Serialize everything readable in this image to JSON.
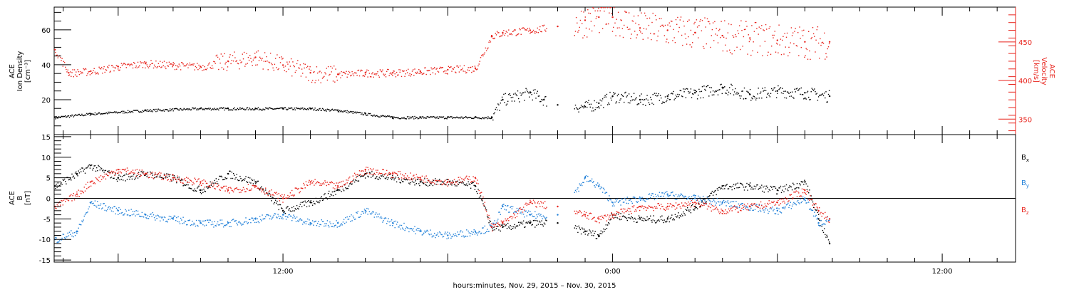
{
  "xaxis_title": "hours:minutes, Nov. 29, 2015 – Nov. 30, 2015",
  "colors": {
    "black": "#000000",
    "red": "#e8231c",
    "blue": "#1f7fd8"
  },
  "chart_data": [
    {
      "type": "scatter",
      "panel": "ion-density-velocity",
      "ylabel_left": [
        "ACE",
        "Ion Density",
        "[cm⁻³]"
      ],
      "ylabel_right": [
        "ACE",
        "Velocity",
        "[km/s]"
      ],
      "x_range_hours": [
        3.67,
        38.67
      ],
      "xtick_labels": [
        "12:00",
        "0:00",
        "12:00"
      ],
      "ylim_left": [
        0,
        73
      ],
      "yticks_left": [
        20,
        40,
        60
      ],
      "ylim_right": [
        330,
        495
      ],
      "yticks_right": [
        350,
        400,
        450
      ],
      "series": [
        {
          "axis": "left",
          "color": "black",
          "x": [
            3.7,
            5,
            7,
            9,
            10,
            11,
            12,
            13,
            14,
            15,
            16,
            17,
            18,
            19,
            19.6,
            20,
            21,
            21.5,
            22,
            23,
            23.5,
            24,
            25,
            26,
            27,
            28,
            29,
            30,
            31,
            31.9
          ],
          "y": [
            10,
            12,
            14,
            15,
            15,
            15,
            15,
            15,
            14,
            12,
            10,
            10,
            10,
            10,
            10,
            20,
            24,
            20,
            17,
            16,
            18,
            22,
            20,
            22,
            24,
            27,
            23,
            25,
            24,
            22
          ]
        },
        {
          "axis": "right",
          "color": "red",
          "x": [
            3.7,
            4.2,
            5,
            6,
            7,
            8,
            9,
            10,
            11,
            12,
            13,
            14,
            15,
            16,
            17,
            18,
            19,
            19.6,
            20,
            21,
            22,
            23,
            23.5,
            24,
            25,
            26,
            27,
            28,
            29,
            30,
            31,
            31.9
          ],
          "y": [
            440,
            410,
            412,
            418,
            422,
            420,
            418,
            425,
            430,
            420,
            410,
            408,
            410,
            410,
            412,
            414,
            416,
            458,
            462,
            465,
            470,
            478,
            482,
            482,
            468,
            465,
            462,
            458,
            455,
            452,
            450,
            450
          ]
        }
      ]
    },
    {
      "type": "scatter",
      "panel": "magnetic-field",
      "ylabel_left": [
        "ACE",
        "B",
        "[nT]"
      ],
      "x_range_hours": [
        3.67,
        38.67
      ],
      "xtick_labels": [
        "12:00",
        "0:00",
        "12:00"
      ],
      "ylim": [
        -15.5,
        15.5
      ],
      "yticks": [
        -15,
        -10,
        -5,
        0,
        5,
        10,
        15
      ],
      "zero_line": true,
      "legend_position": "right",
      "series": [
        {
          "name": "Bx",
          "color": "black",
          "x": [
            3.7,
            4.5,
            5,
            6,
            7,
            8,
            9,
            10,
            11,
            12,
            13,
            14,
            15,
            16,
            17,
            18,
            19,
            19.6,
            20,
            21,
            22,
            23,
            23.5,
            24,
            25,
            26,
            27,
            28,
            29,
            30,
            31,
            31.5,
            31.9
          ],
          "y": [
            3,
            6,
            8,
            5,
            6,
            5,
            2,
            6,
            4,
            -3,
            -1,
            2,
            6,
            5,
            4,
            4,
            3,
            -7,
            -7,
            -6,
            -6,
            -8,
            -9,
            -4,
            -5,
            -5,
            -2,
            3,
            3,
            2,
            4,
            -5,
            -11
          ]
        },
        {
          "name": "By",
          "color": "blue",
          "x": [
            3.7,
            4.5,
            5,
            6,
            7,
            8,
            9,
            10,
            11,
            12,
            13,
            14,
            15,
            16,
            17,
            18,
            19,
            19.6,
            20,
            21,
            22,
            23,
            23.5,
            24,
            25,
            26,
            27,
            28,
            29,
            30,
            31,
            31.5,
            31.9
          ],
          "y": [
            -10,
            -8,
            -1,
            -3,
            -4,
            -5,
            -6,
            -6,
            -5,
            -4,
            -6,
            -6,
            -3,
            -6,
            -8,
            -9,
            -8,
            -7,
            -2,
            -4,
            -4,
            5,
            3,
            -1,
            0,
            1,
            0,
            -1,
            -2,
            -3,
            0,
            -6,
            -5
          ]
        },
        {
          "name": "Bz",
          "color": "red",
          "x": [
            3.7,
            4.5,
            5,
            6,
            7,
            8,
            9,
            10,
            11,
            12,
            13,
            14,
            15,
            16,
            17,
            18,
            19,
            19.6,
            20,
            21,
            22,
            23,
            23.5,
            24,
            25,
            26,
            27,
            28,
            29,
            30,
            31,
            31.5,
            31.9
          ],
          "y": [
            -2,
            1,
            4,
            7,
            6,
            5,
            4,
            2,
            3,
            0,
            4,
            3,
            7,
            6,
            5,
            4,
            5,
            -7,
            -6,
            -1,
            -2,
            -4,
            -5,
            -4,
            -2,
            -2,
            -1,
            -3,
            -2,
            -1,
            2,
            -3,
            -5
          ]
        }
      ]
    }
  ]
}
